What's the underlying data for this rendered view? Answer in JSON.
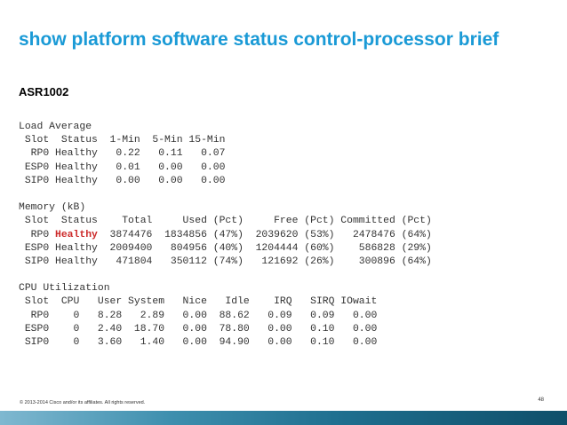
{
  "slide": {
    "title": "show platform software status control-processor brief",
    "device": "ASR1002",
    "copyright": "© 2013-2014 Cisco and/or its affiliates. All rights reserved.",
    "page_number": "48"
  },
  "output": {
    "load": {
      "heading": "Load Average",
      "columns": " Slot  Status  1-Min  5-Min 15-Min",
      "rows": [
        "  RP0 Healthy   0.22   0.11   0.07",
        " ESP0 Healthy   0.01   0.00   0.00",
        " SIP0 Healthy   0.00   0.00   0.00"
      ]
    },
    "memory": {
      "heading": "Memory (kB)",
      "columns": " Slot  Status    Total     Used (Pct)     Free (Pct) Committed (Pct)",
      "row1_slot": "  RP0 ",
      "row1_status": "Healthy",
      "row1_rest": "  3874476  1834856 (47%)  2039620 (53%)   2478476 (64%)",
      "rows": [
        " ESP0 Healthy  2009400   804956 (40%)  1204444 (60%)    586828 (29%)",
        " SIP0 Healthy   471804   350112 (74%)   121692 (26%)    300896 (64%)"
      ]
    },
    "cpu": {
      "heading": "CPU Utilization",
      "columns": " Slot  CPU   User System   Nice   Idle    IRQ   SIRQ IOwait",
      "rows": [
        "  RP0    0   8.28   2.89   0.00  88.62   0.09   0.09   0.00",
        " ESP0    0   2.40  18.70   0.00  78.80   0.00   0.10   0.00",
        " SIP0    0   3.60   1.40   0.00  94.90   0.00   0.10   0.00"
      ]
    }
  },
  "colors": {
    "title": "#1a9ad6",
    "highlight": "#cc2a2a",
    "footer_bar": "#1f6f8f"
  }
}
